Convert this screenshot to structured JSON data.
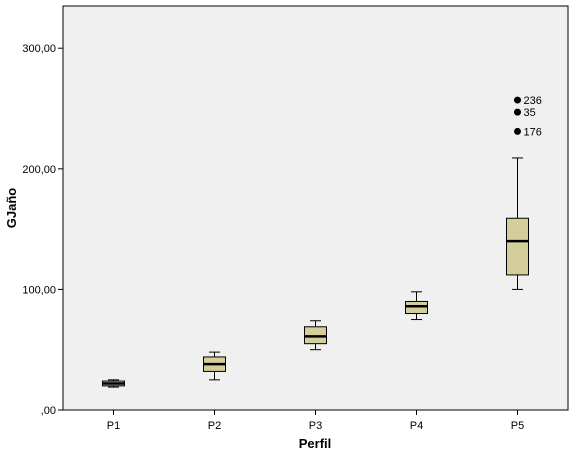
{
  "chart_data": {
    "type": "boxplot",
    "xlabel": "Perfil",
    "ylabel": "GJaño",
    "ylim": [
      0,
      335
    ],
    "y_ticks": [
      {
        "value": 0,
        "label": ",00"
      },
      {
        "value": 100,
        "label": "100,00"
      },
      {
        "value": 200,
        "label": "200,00"
      },
      {
        "value": 300,
        "label": "300,00"
      }
    ],
    "grid": false,
    "colors": {
      "plot_background": "#f0f0f0",
      "box_fill": "#d3ce9b",
      "box_stroke": "#000000"
    },
    "categories": [
      "P1",
      "P2",
      "P3",
      "P4",
      "P5"
    ],
    "boxes": [
      {
        "category": "P1",
        "min": 19,
        "q1": 20,
        "median": 22,
        "q3": 24,
        "max": 25,
        "outliers": []
      },
      {
        "category": "P2",
        "min": 25,
        "q1": 32,
        "median": 38,
        "q3": 44,
        "max": 48,
        "outliers": []
      },
      {
        "category": "P3",
        "min": 50,
        "q1": 55,
        "median": 61,
        "q3": 69,
        "max": 74,
        "outliers": []
      },
      {
        "category": "P4",
        "min": 75,
        "q1": 80,
        "median": 86,
        "q3": 90,
        "max": 98,
        "outliers": []
      },
      {
        "category": "P5",
        "min": 100,
        "q1": 112,
        "median": 140,
        "q3": 159,
        "max": 209,
        "outliers": [
          {
            "value": 257,
            "label": "236"
          },
          {
            "value": 247,
            "label": "35"
          },
          {
            "value": 231,
            "label": "176"
          }
        ]
      }
    ]
  }
}
